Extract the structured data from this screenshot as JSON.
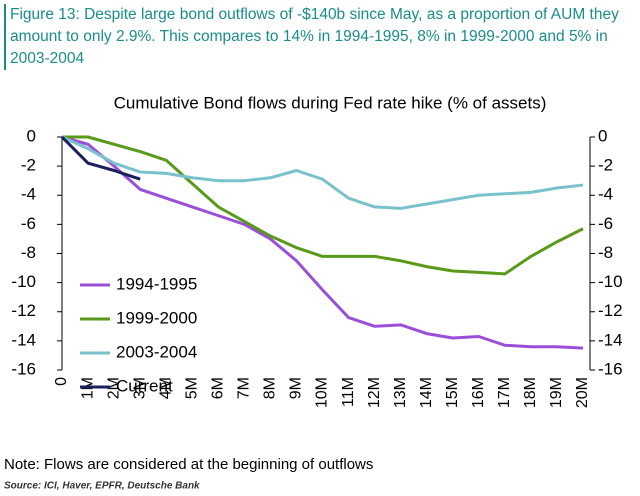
{
  "chart_data": {
    "type": "line",
    "caption": "Figure 13: Despite large bond outflows of -$140b since May, as a proportion of AUM they amount to only 2.9%. This compares to 14% in 1994-1995, 8% in 1999-2000 and 5% in 2003-2004",
    "title": "Cumulative Bond flows during Fed rate hike (% of assets)",
    "categories": [
      "0",
      "1M",
      "2M",
      "3M",
      "4M",
      "5M",
      "6M",
      "7M",
      "8M",
      "9M",
      "10M",
      "11M",
      "12M",
      "13M",
      "14M",
      "15M",
      "16M",
      "17M",
      "18M",
      "19M",
      "20M"
    ],
    "series": [
      {
        "name": "1994-1995",
        "color": "#9b4fd9",
        "values": [
          0,
          -0.5,
          -2,
          -3.6,
          -4.2,
          -4.8,
          -5.4,
          -6.0,
          -7.0,
          -8.5,
          -10.5,
          -12.4,
          -13.0,
          -12.9,
          -13.5,
          -13.8,
          -13.7,
          -14.3,
          -14.4,
          -14.4,
          -14.5
        ]
      },
      {
        "name": "1999-2000",
        "color": "#5a9a1a",
        "values": [
          0,
          0,
          -0.5,
          -1.0,
          -1.6,
          -3.2,
          -4.8,
          -5.8,
          -6.8,
          -7.6,
          -8.2,
          -8.2,
          -8.2,
          -8.5,
          -8.9,
          -9.2,
          -9.3,
          -9.4,
          -8.2,
          -7.2,
          -6.3
        ]
      },
      {
        "name": "2003-2004",
        "color": "#79c2cc",
        "values": [
          0,
          -0.8,
          -1.8,
          -2.4,
          -2.5,
          -2.8,
          -3.0,
          -3.0,
          -2.8,
          -2.3,
          -2.9,
          -4.2,
          -4.8,
          -4.9,
          -4.6,
          -4.3,
          -4.0,
          -3.9,
          -3.8,
          -3.5,
          -3.3
        ]
      },
      {
        "name": "Current",
        "color": "#1a1f5e",
        "values": [
          0,
          -1.8,
          -2.3,
          -2.9,
          null,
          null,
          null,
          null,
          null,
          null,
          null,
          null,
          null,
          null,
          null,
          null,
          null,
          null,
          null,
          null,
          null
        ]
      }
    ],
    "ylim": [
      -16,
      0
    ],
    "yticks": [
      0,
      -2,
      -4,
      -6,
      -8,
      -10,
      -12,
      -14,
      -16
    ],
    "y2lim": [
      -16,
      0
    ],
    "y2ticks": [
      0,
      -2,
      -4,
      -6,
      -8,
      -10,
      -12,
      -14,
      -16
    ],
    "grid": false,
    "legend": "left",
    "note": "Note: Flows are considered at the beginning of outflows",
    "source": "Source: ICI, Haver, EPFR, Deutsche Bank"
  }
}
